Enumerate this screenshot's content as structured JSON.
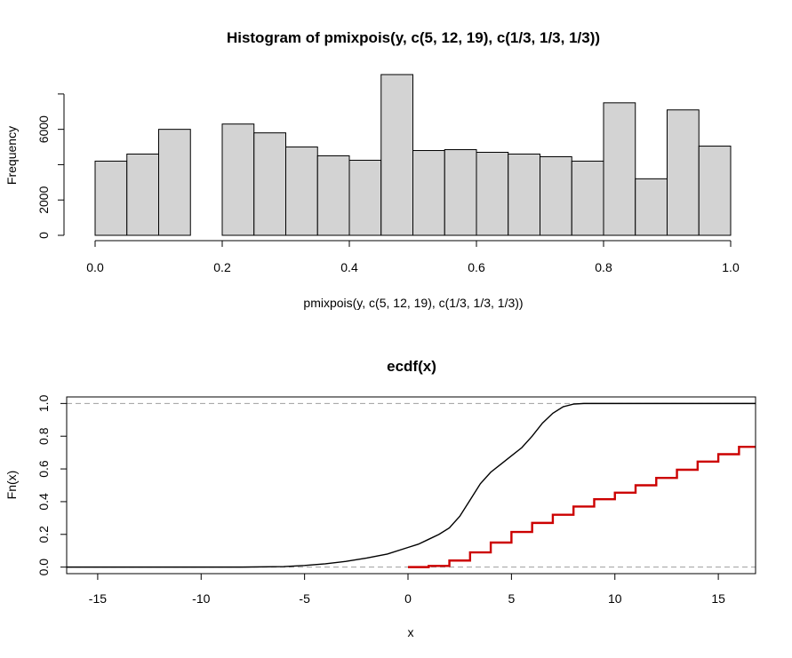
{
  "chart_data": [
    {
      "type": "bar",
      "subtype": "histogram",
      "title": "Histogram of pmixpois(y, c(5, 12, 19), c(1/3, 1/3, 1/3))",
      "xlabel": "pmixpois(y, c(5, 12, 19), c(1/3, 1/3, 1/3))",
      "ylabel": "Frequency",
      "bar_color": "#d3d3d3",
      "bin_edges": [
        0.0,
        0.05,
        0.1,
        0.15,
        0.2,
        0.25,
        0.3,
        0.35,
        0.4,
        0.45,
        0.5,
        0.55,
        0.6,
        0.65,
        0.7,
        0.75,
        0.8,
        0.85,
        0.9,
        0.95,
        1.0
      ],
      "values": [
        4200,
        4600,
        6000,
        0,
        6300,
        5800,
        5000,
        4500,
        4250,
        9100,
        4800,
        4850,
        4700,
        4600,
        4450,
        4200,
        7500,
        3200,
        7100,
        5050
      ],
      "x_ticks": [
        0.0,
        0.2,
        0.4,
        0.6,
        0.8,
        1.0
      ],
      "x_tick_labels": [
        "0.0",
        "0.2",
        "0.4",
        "0.6",
        "0.8",
        "1.0"
      ],
      "y_ticks": [
        0,
        2000,
        6000
      ],
      "y_tick_labels": [
        "0",
        "2000",
        "6000"
      ],
      "xlim": [
        0,
        1
      ],
      "ylim": [
        0,
        9300
      ]
    },
    {
      "type": "line",
      "subtype": "step/ecdf",
      "title": "ecdf(x)",
      "xlabel": "x",
      "ylabel": "Fn(x)",
      "xlim": [
        -16.5,
        16.8
      ],
      "ylim": [
        -0.04,
        1.04
      ],
      "x_ticks": [
        -15,
        -10,
        -5,
        0,
        5,
        10,
        15
      ],
      "x_tick_labels": [
        "-15",
        "-10",
        "-5",
        "0",
        "5",
        "10",
        "15"
      ],
      "y_ticks": [
        0.0,
        0.2,
        0.4,
        0.6,
        0.8,
        1.0
      ],
      "y_tick_labels": [
        "0.0",
        "0.2",
        "0.4",
        "0.6",
        "0.8",
        "1.0"
      ],
      "reference_lines": [
        0,
        1
      ],
      "reference_line_style": "dashed gray",
      "series": [
        {
          "style": "smooth black ecdf",
          "color": "#000000",
          "points": [
            [
              -16.5,
              0.0
            ],
            [
              -8,
              0.0
            ],
            [
              -6,
              0.003
            ],
            [
              -5,
              0.01
            ],
            [
              -4,
              0.02
            ],
            [
              -3,
              0.035
            ],
            [
              -2,
              0.055
            ],
            [
              -1,
              0.08
            ],
            [
              0,
              0.12
            ],
            [
              0.5,
              0.14
            ],
            [
              1,
              0.17
            ],
            [
              1.5,
              0.2
            ],
            [
              2,
              0.24
            ],
            [
              2.5,
              0.31
            ],
            [
              3,
              0.41
            ],
            [
              3.5,
              0.51
            ],
            [
              4,
              0.58
            ],
            [
              4.5,
              0.63
            ],
            [
              5,
              0.68
            ],
            [
              5.5,
              0.73
            ],
            [
              6,
              0.8
            ],
            [
              6.5,
              0.88
            ],
            [
              7,
              0.94
            ],
            [
              7.5,
              0.98
            ],
            [
              8,
              0.996
            ],
            [
              8.5,
              1.0
            ],
            [
              16.8,
              1.0
            ]
          ]
        },
        {
          "style": "red step",
          "color": "#cc0000",
          "steps": [
            [
              0,
              0.0
            ],
            [
              1,
              0.007
            ],
            [
              2,
              0.04
            ],
            [
              3,
              0.09
            ],
            [
              4,
              0.15
            ],
            [
              5,
              0.215
            ],
            [
              6,
              0.27
            ],
            [
              7,
              0.32
            ],
            [
              8,
              0.37
            ],
            [
              9,
              0.415
            ],
            [
              10,
              0.455
            ],
            [
              11,
              0.5
            ],
            [
              12,
              0.545
            ],
            [
              13,
              0.595
            ],
            [
              14,
              0.645
            ],
            [
              15,
              0.69
            ],
            [
              16,
              0.735
            ]
          ],
          "end_x": 16.8
        }
      ]
    }
  ]
}
